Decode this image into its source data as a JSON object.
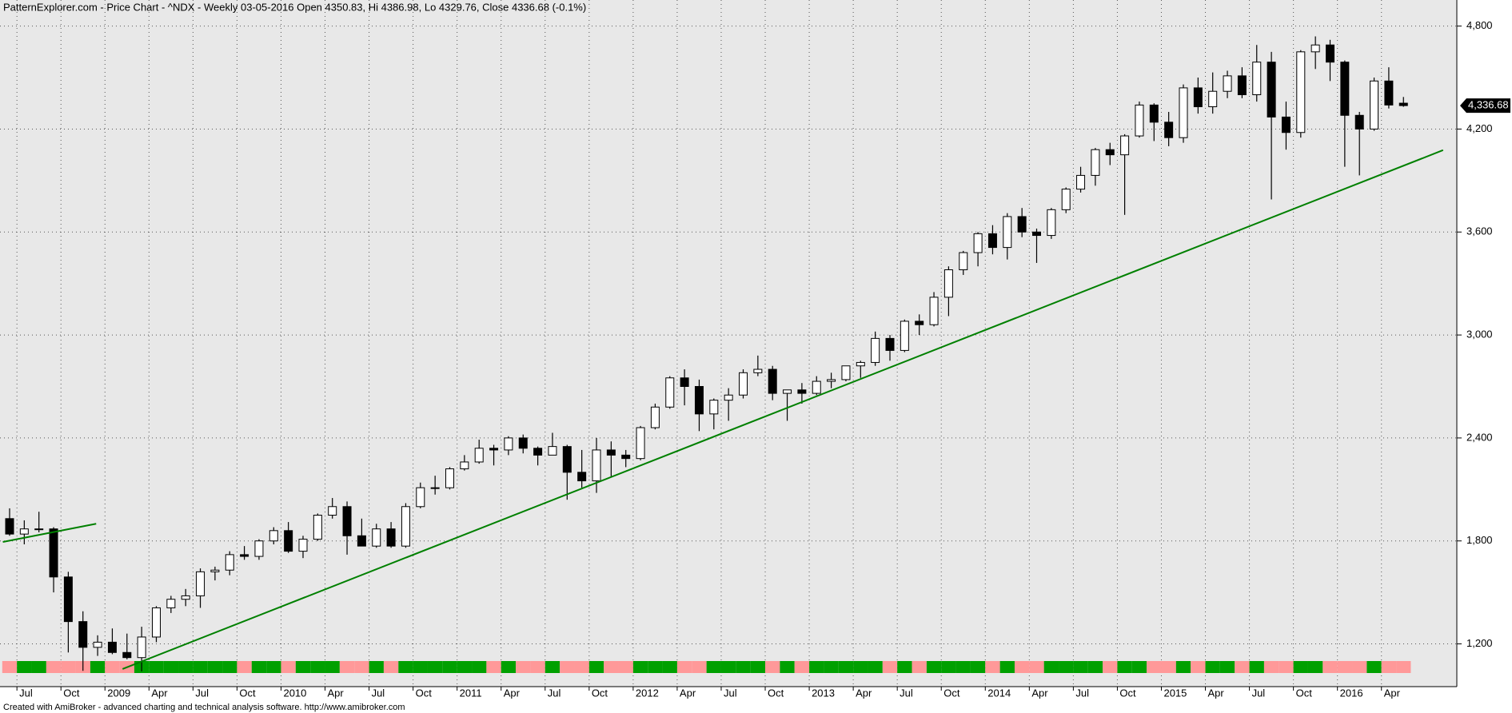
{
  "chart_data": {
    "type": "candlestick",
    "title": "PatternExplorer.com - Price Chart - ^NDX - Weekly 03-05-2016 Open 4350.83, Hi 4386.98, Lo 4329.76, Close 4336.68 (-0.1%)",
    "footer": "Created with AmiBroker - advanced charting and technical analysis software. http://www.amibroker.com",
    "categories": [
      null,
      "Jul",
      null,
      null,
      "Oct",
      null,
      null,
      "2009",
      null,
      null,
      "Apr",
      null,
      null,
      "Jul",
      null,
      null,
      "Oct",
      null,
      null,
      "2010",
      null,
      null,
      "Apr",
      null,
      null,
      "Jul",
      null,
      null,
      "Oct",
      null,
      null,
      "2011",
      null,
      null,
      "Apr",
      null,
      null,
      "Jul",
      null,
      null,
      "Oct",
      null,
      null,
      "2012",
      null,
      null,
      "Apr",
      null,
      null,
      "Jul",
      null,
      null,
      "Oct",
      null,
      null,
      "2013",
      null,
      null,
      "Apr",
      null,
      null,
      "Jul",
      null,
      null,
      "Oct",
      null,
      null,
      "2014",
      null,
      null,
      "Apr",
      null,
      null,
      "Jul",
      null,
      null,
      "Oct",
      null,
      null,
      "2015",
      null,
      null,
      "Apr",
      null,
      null,
      "Jul",
      null,
      null,
      "Oct",
      null,
      null,
      "2016",
      null,
      null,
      "Apr",
      null
    ],
    "open": [
      1930,
      1840,
      1870,
      1870,
      1590,
      1330,
      1180,
      1210,
      1150,
      1120,
      1240,
      1410,
      1460,
      1480,
      1620,
      1630,
      1720,
      1710,
      1800,
      1860,
      1740,
      1810,
      1950,
      2000,
      1830,
      1770,
      1870,
      1770,
      2000,
      2110,
      2110,
      2220,
      2260,
      2340,
      2330,
      2400,
      2340,
      2300,
      2350,
      2200,
      2150,
      2330,
      2300,
      2280,
      2460,
      2580,
      2750,
      2700,
      2540,
      2620,
      2650,
      2780,
      2800,
      2660,
      2680,
      2660,
      2730,
      2740,
      2820,
      2840,
      2980,
      2910,
      3080,
      3060,
      3220,
      3380,
      3480,
      3590,
      3510,
      3690,
      3600,
      3580,
      3730,
      3850,
      3930,
      4080,
      4050,
      4160,
      4340,
      4240,
      4150,
      4440,
      4330,
      4420,
      4510,
      4400,
      4590,
      4270,
      4180,
      4650,
      4690,
      4590,
      4280,
      4200,
      4480,
      4350.83
    ],
    "high": [
      1990,
      1920,
      1970,
      1880,
      1620,
      1390,
      1250,
      1290,
      1260,
      1300,
      1420,
      1480,
      1520,
      1640,
      1650,
      1740,
      1770,
      1810,
      1880,
      1910,
      1830,
      1960,
      2050,
      2030,
      1930,
      1900,
      1910,
      2020,
      2140,
      2180,
      2230,
      2300,
      2390,
      2360,
      2410,
      2420,
      2350,
      2430,
      2360,
      2330,
      2400,
      2380,
      2330,
      2470,
      2600,
      2760,
      2800,
      2740,
      2630,
      2690,
      2800,
      2880,
      2820,
      2680,
      2720,
      2760,
      2780,
      2820,
      2850,
      3020,
      3000,
      3090,
      3120,
      3250,
      3400,
      3490,
      3600,
      3640,
      3710,
      3740,
      3620,
      3740,
      3860,
      3980,
      4090,
      4120,
      4170,
      4360,
      4350,
      4300,
      4460,
      4500,
      4530,
      4540,
      4560,
      4690,
      4650,
      4360,
      4660,
      4740,
      4720,
      4600,
      4300,
      4500,
      4560,
      4386.98
    ],
    "low": [
      1830,
      1780,
      1850,
      1500,
      1150,
      1043,
      1130,
      1140,
      1110,
      1040,
      1210,
      1380,
      1420,
      1410,
      1570,
      1600,
      1690,
      1690,
      1780,
      1730,
      1700,
      1800,
      1930,
      1720,
      1780,
      1760,
      1760,
      1760,
      1990,
      2070,
      2100,
      2210,
      2250,
      2240,
      2300,
      2310,
      2240,
      2300,
      2040,
      2110,
      2080,
      2170,
      2230,
      2270,
      2450,
      2570,
      2590,
      2440,
      2450,
      2500,
      2630,
      2760,
      2620,
      2500,
      2600,
      2650,
      2690,
      2730,
      2750,
      2820,
      2850,
      2900,
      3000,
      3050,
      3110,
      3350,
      3400,
      3470,
      3440,
      3570,
      3420,
      3560,
      3710,
      3830,
      3870,
      3990,
      3700,
      4150,
      4130,
      4100,
      4120,
      4290,
      4290,
      4380,
      4380,
      4360,
      3790,
      4080,
      4150,
      4550,
      4480,
      3980,
      3930,
      4190,
      4320,
      4329.76
    ],
    "close": [
      1840,
      1870,
      1870,
      1590,
      1330,
      1180,
      1210,
      1150,
      1120,
      1240,
      1410,
      1460,
      1480,
      1620,
      1630,
      1720,
      1710,
      1800,
      1860,
      1740,
      1810,
      1950,
      2000,
      1830,
      1770,
      1870,
      1770,
      2000,
      2110,
      2110,
      2220,
      2260,
      2340,
      2330,
      2400,
      2340,
      2300,
      2350,
      2200,
      2150,
      2330,
      2300,
      2280,
      2460,
      2580,
      2750,
      2700,
      2540,
      2620,
      2650,
      2780,
      2800,
      2660,
      2680,
      2660,
      2730,
      2740,
      2820,
      2840,
      2980,
      2910,
      3080,
      3060,
      3220,
      3380,
      3480,
      3590,
      3510,
      3690,
      3600,
      3580,
      3730,
      3850,
      3930,
      4080,
      4050,
      4160,
      4340,
      4240,
      4150,
      4440,
      4330,
      4420,
      4510,
      4400,
      4590,
      4270,
      4180,
      4650,
      4690,
      4590,
      4280,
      4200,
      4480,
      4340,
      4336.68
    ],
    "close_label": "4,336.68",
    "up_color": "#ffffff",
    "down_color": "#000000",
    "ribbon_up_color": "#00a000",
    "ribbon_down_color": "#ff9999",
    "trendlines": [
      {
        "color": "#008000",
        "x": [
          7.7,
          97.7
        ],
        "values": [
          1054,
          4077
        ]
      },
      {
        "color": "#008000",
        "x": [
          -0.46,
          5.9
        ],
        "values": [
          1794,
          1900
        ]
      }
    ],
    "ylim": [
      951,
      4952
    ],
    "yticks": [
      {
        "value": 1200,
        "label": "1,200"
      },
      {
        "value": 1800,
        "label": "1,800"
      },
      {
        "value": 2400,
        "label": "2,400"
      },
      {
        "value": 3000,
        "label": "3,000"
      },
      {
        "value": 3600,
        "label": "3,600"
      },
      {
        "value": 4200,
        "label": "4,200"
      },
      {
        "value": 4800,
        "label": "4,800"
      }
    ],
    "grid": true,
    "background": "#e8e8e8"
  }
}
